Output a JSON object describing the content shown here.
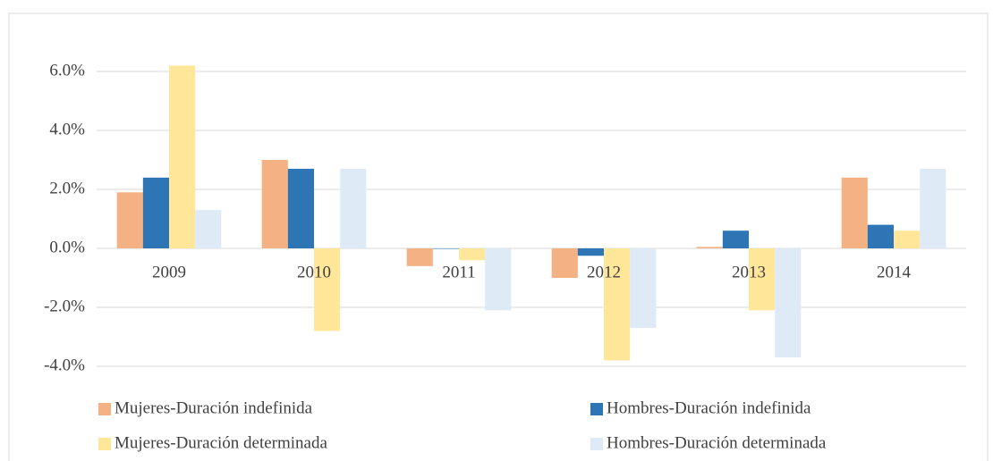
{
  "chart_data": {
    "type": "bar",
    "categories": [
      "2009",
      "2010",
      "2011",
      "2012",
      "2013",
      "2014"
    ],
    "series": [
      {
        "name": "Mujeres-Duración indefinida",
        "color": "#F4B183",
        "values": [
          1.9,
          3.0,
          -0.6,
          -1.0,
          0.05,
          2.4
        ]
      },
      {
        "name": "Hombres-Duración indefinida",
        "color": "#2E75B6",
        "values": [
          2.4,
          2.7,
          0.0,
          -0.25,
          0.6,
          0.8
        ]
      },
      {
        "name": "Mujeres-Duración determinada",
        "color": "#FFE699",
        "values": [
          6.2,
          -2.8,
          -0.4,
          -3.8,
          -2.1,
          0.6
        ]
      },
      {
        "name": "Hombres-Duración determinada",
        "color": "#DEEBF7",
        "values": [
          1.3,
          2.7,
          -2.1,
          -2.7,
          -3.7,
          2.7
        ]
      }
    ],
    "ylim": [
      -4,
      6.5
    ],
    "yticks": [
      {
        "value": -4,
        "label": "-4.0%"
      },
      {
        "value": -2,
        "label": "-2.0%"
      },
      {
        "value": 0,
        "label": "0.0%"
      },
      {
        "value": 2,
        "label": "2.0%"
      },
      {
        "value": 4,
        "label": "4.0%"
      },
      {
        "value": 6,
        "label": "6.0%"
      }
    ],
    "grid": true,
    "legend": "bottom"
  }
}
